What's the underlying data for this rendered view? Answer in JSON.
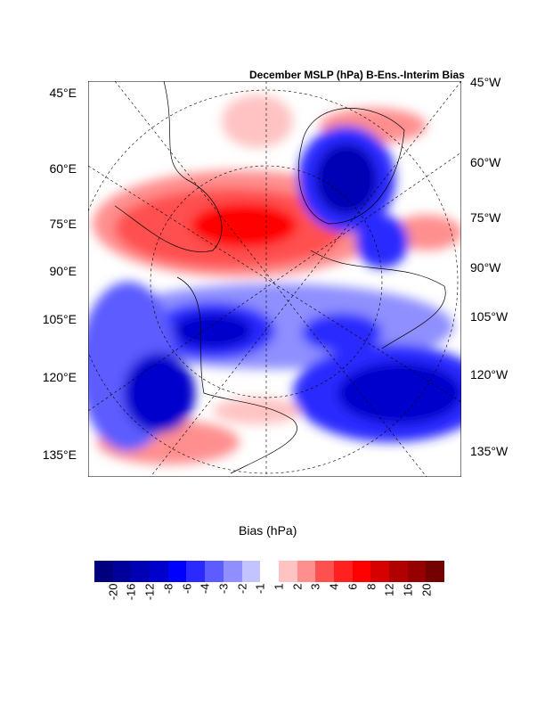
{
  "title": "December MSLP (hPa) B-Ens.-Interim Bias",
  "left_labels": [
    "45°E",
    "60°E",
    "75°E",
    "90°E",
    "105°E",
    "120°E",
    "135°E"
  ],
  "right_labels": [
    "45°W",
    "60°W",
    "75°W",
    "90°W",
    "105°W",
    "120°W",
    "135°W"
  ],
  "colorbar": {
    "title": "Bias (hPa)",
    "levels": [
      "-20",
      "-16",
      "-12",
      "-8",
      "-6",
      "-4",
      "-3",
      "-2",
      "-1",
      "1",
      "2",
      "3",
      "4",
      "6",
      "8",
      "12",
      "16",
      "20"
    ],
    "colors": [
      "#00007f",
      "#00009a",
      "#0000b4",
      "#0000cc",
      "#0000ff",
      "#2a2aff",
      "#5c5cff",
      "#8f8fff",
      "#c3c3ff",
      "#ffffff",
      "#ffc3c3",
      "#ff8f8f",
      "#ff5050",
      "#ff2020",
      "#ff0000",
      "#d60000",
      "#b00000",
      "#960000",
      "#740000"
    ]
  }
}
